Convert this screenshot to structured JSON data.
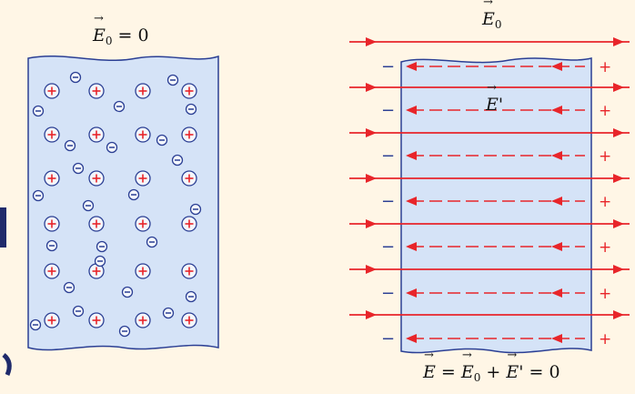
{
  "labels": {
    "left_field": {
      "symbol": "E",
      "sub": "0",
      "rest": " = 0"
    },
    "right_field": {
      "symbol": "E",
      "sub": "0"
    },
    "induced_field": {
      "symbol": "E",
      "prime": "'"
    },
    "total_field": {
      "s1": "E",
      "eq1": " = ",
      "s2": "E",
      "sub2": "0",
      "plus": " + ",
      "s3": "E",
      "prime3": "'",
      "eq2": " = 0"
    }
  },
  "signs": {
    "positive": "+",
    "negative": "−"
  },
  "colors": {
    "background": "#FFF6E6",
    "slab_fill": "#D5E3F7",
    "slab_edge": "#2B3F94",
    "field_line": "#E8252A",
    "positive_ion": "#E8252A",
    "electron": "#2B3F94"
  }
}
